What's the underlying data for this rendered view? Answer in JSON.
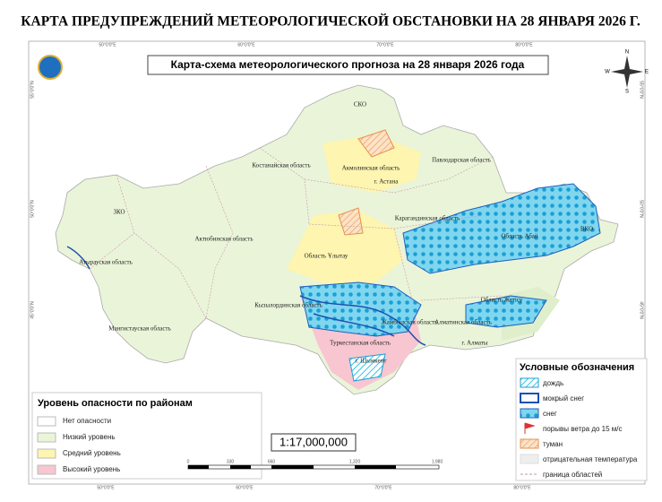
{
  "header": {
    "title": "КАРТА ПРЕДУПРЕЖДЕНИЙ МЕТЕОРОЛОГИЧЕСКОЙ ОБСТАНОВКИ НА 28 ЯНВАРЯ 2026 Г."
  },
  "map": {
    "title": "Карта-схема метеорологического прогноза на 28 января 2026 года",
    "regions": [
      "СКО",
      "Костанайская область",
      "Акмолинская область",
      "г. Астана",
      "Павлодарская область",
      "ЗКО",
      "Актюбинская область",
      "Карагандинская область",
      "Область Абай",
      "ВКО",
      "Атырауская область",
      "Область Ұлытау",
      "Кызылординская область",
      "Мангистауская область",
      "Жамбылская область",
      "Алматинская область",
      "Область Жетісу",
      "Туркестанская область",
      "г. Алматы",
      "г. Шымкент"
    ],
    "coordinates": {
      "top": [
        "50°0'0\"E",
        "60°0'0\"E",
        "70°0'0\"E",
        "80°0'0\"E"
      ],
      "bottom": [
        "50°0'0\"E",
        "60°0'0\"E",
        "70°0'0\"E",
        "80°0'0\"E"
      ],
      "left": [
        "55°0'0\"N",
        "50°0'0\"N",
        "45°0'0\"N"
      ],
      "right": [
        "55°0'0\"N",
        "50°0'0\"N",
        "45°0'0\"N"
      ]
    },
    "compass": [
      "N",
      "E",
      "S",
      "W"
    ],
    "scale": "1:17,000,000",
    "scale_bar": [
      "0",
      "330",
      "660",
      "1,320",
      "1,980"
    ]
  },
  "danger_legend": {
    "title": "Уровень опасности по районам",
    "items": [
      "Нет опасности",
      "Низкий уровень",
      "Средний уровень",
      "Высокий уровень"
    ]
  },
  "symbols_legend": {
    "title": "Условные обозначения",
    "items": [
      "дождь",
      "мокрый снег",
      "снег",
      "порывы ветра до 15 м/с",
      "туман",
      "отрицательная температура",
      "граница областей"
    ]
  }
}
